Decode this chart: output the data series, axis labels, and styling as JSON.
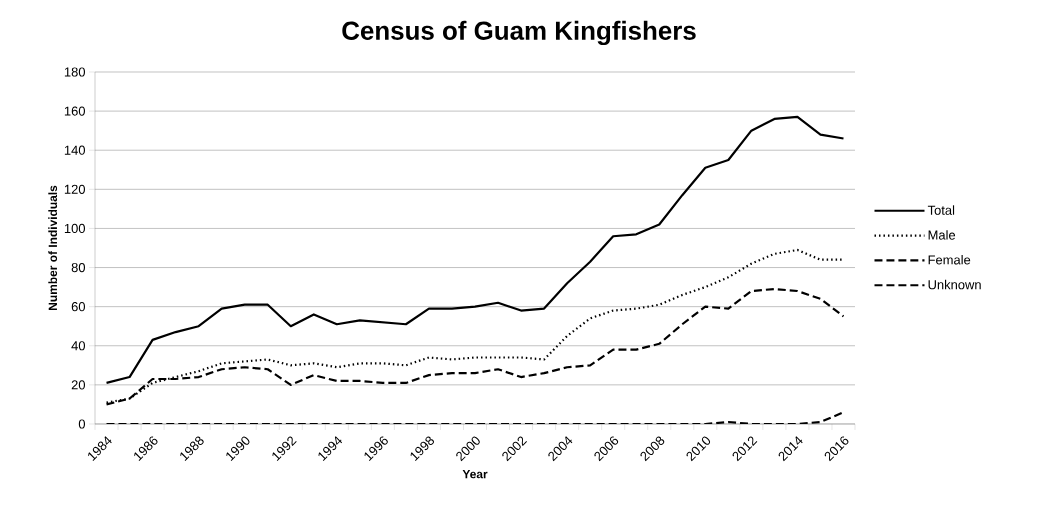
{
  "chart_data": {
    "type": "line",
    "title": "Census of Guam Kingfishers",
    "xlabel": "Year",
    "ylabel": "Number of Individuals",
    "categories": [
      "1984",
      null,
      "1986",
      null,
      "1988",
      null,
      "1990",
      null,
      "1992",
      null,
      "1994",
      null,
      "1996",
      null,
      "1998",
      null,
      "2000",
      null,
      "2002",
      null,
      "2004",
      null,
      "2006",
      null,
      "2008",
      null,
      "2010",
      null,
      "2012",
      null,
      "2014",
      null,
      "2016"
    ],
    "series": [
      {
        "name": "Total",
        "color": "#000000",
        "line_style": "solid",
        "values": [
          21,
          24,
          43,
          47,
          50,
          59,
          61,
          61,
          50,
          56,
          51,
          53,
          52,
          51,
          59,
          59,
          60,
          62,
          58,
          59,
          72,
          83,
          96,
          97,
          102,
          117,
          131,
          135,
          150,
          156,
          157,
          148,
          146
        ]
      },
      {
        "name": "Male",
        "color": "#000000",
        "line_style": "dotted",
        "values": [
          11,
          13,
          21,
          24,
          27,
          31,
          32,
          33,
          30,
          31,
          29,
          31,
          31,
          30,
          34,
          33,
          34,
          34,
          34,
          33,
          45,
          54,
          58,
          59,
          61,
          66,
          70,
          75,
          82,
          87,
          89,
          84,
          84
        ]
      },
      {
        "name": "Female",
        "color": "#000000",
        "line_style": "dashed",
        "values": [
          10,
          13,
          23,
          23,
          24,
          28,
          29,
          28,
          20,
          25,
          22,
          22,
          21,
          21,
          25,
          26,
          26,
          28,
          24,
          26,
          29,
          30,
          38,
          38,
          41,
          51,
          60,
          59,
          68,
          69,
          68,
          64,
          55
        ]
      },
      {
        "name": "Unknown",
        "color": "#000000",
        "line_style": "dashed",
        "values": [
          0,
          0,
          0,
          0,
          0,
          0,
          0,
          0,
          0,
          0,
          0,
          0,
          0,
          0,
          0,
          0,
          0,
          0,
          0,
          0,
          0,
          0,
          0,
          0,
          0,
          0,
          0,
          1,
          0,
          0,
          0,
          1,
          6
        ]
      }
    ],
    "ylim": [
      0,
      180
    ],
    "yticks": [
      0,
      20,
      40,
      60,
      80,
      100,
      120,
      140,
      160,
      180
    ],
    "grid": "y",
    "legend": "right",
    "marker": "none"
  }
}
